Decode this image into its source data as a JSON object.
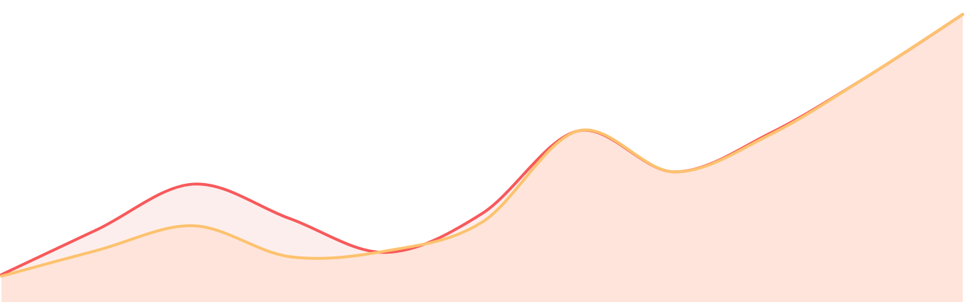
{
  "chart_data": {
    "type": "area",
    "x": [
      0,
      1,
      2,
      3,
      4,
      5,
      6,
      7,
      8,
      9,
      10
    ],
    "ylim": [
      0,
      420
    ],
    "grid": false,
    "legend": "none",
    "series": [
      {
        "values": [
          38,
          101,
          164,
          116,
          69,
          123,
          238,
          181,
          235,
          313,
          400
        ],
        "line_color": "#f7595b",
        "fill_color": "#fdeeee"
      },
      {
        "values": [
          36,
          72,
          106,
          63,
          71,
          111,
          238,
          181,
          233,
          313,
          400
        ],
        "line_color": "#fdc26e",
        "fill_color": "#fee4da"
      }
    ]
  }
}
